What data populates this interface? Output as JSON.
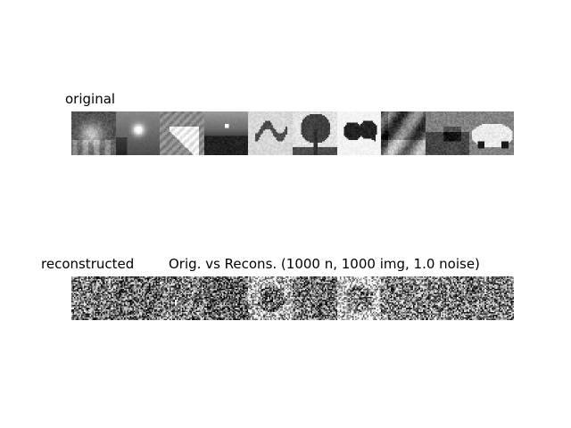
{
  "labels": {
    "original": "original",
    "reconstructed": "reconstructed",
    "title": "Orig. vs Recons. (1000 n, 1000 img, 1.0 noise)"
  },
  "original_thumbnails": [
    {
      "name": "original-thumb-1",
      "desc": "blurry grayscale object"
    },
    {
      "name": "original-thumb-2",
      "desc": "sun over water"
    },
    {
      "name": "original-thumb-3",
      "desc": "hand on keyboard"
    },
    {
      "name": "original-thumb-4",
      "desc": "sunset over sea"
    },
    {
      "name": "original-thumb-5",
      "desc": "lizard on light background"
    },
    {
      "name": "original-thumb-6",
      "desc": "tree silhouette"
    },
    {
      "name": "original-thumb-7",
      "desc": "lobster"
    },
    {
      "name": "original-thumb-8",
      "desc": "street scene"
    },
    {
      "name": "original-thumb-9",
      "desc": "road with vehicles"
    },
    {
      "name": "original-thumb-10",
      "desc": "car"
    }
  ],
  "reconstructed_thumbnails": [
    {
      "name": "reconstructed-thumb-1"
    },
    {
      "name": "reconstructed-thumb-2"
    },
    {
      "name": "reconstructed-thumb-3"
    },
    {
      "name": "reconstructed-thumb-4"
    },
    {
      "name": "reconstructed-thumb-5"
    },
    {
      "name": "reconstructed-thumb-6"
    },
    {
      "name": "reconstructed-thumb-7"
    },
    {
      "name": "reconstructed-thumb-8"
    },
    {
      "name": "reconstructed-thumb-9"
    },
    {
      "name": "reconstructed-thumb-10"
    }
  ]
}
